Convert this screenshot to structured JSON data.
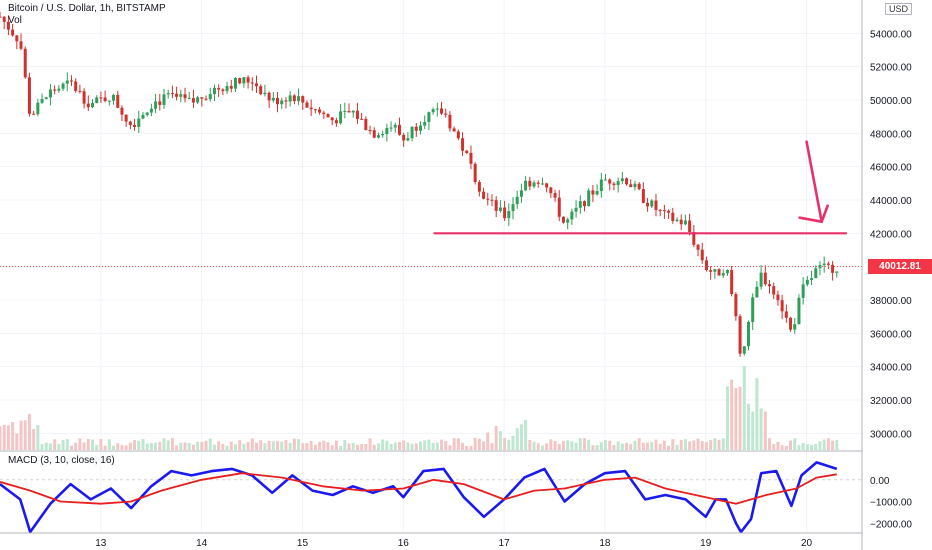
{
  "header": {
    "title": "Bitcoin / U.S. Dollar, 1h, BITSTAMP",
    "vol_label": "Vol",
    "macd_label": "MACD (3, 10, close, 16)",
    "currency": "USD"
  },
  "current_price": "40012.81",
  "colors": {
    "up": "#26a69a",
    "down": "#ef5350",
    "candle_up": "#2e9e58",
    "candle_down": "#d0312d",
    "annotation": "#e8306a",
    "macd_line": "#1a1af0",
    "signal_line": "#e81e1e",
    "grid": "#f0f3fa"
  },
  "chart_data": [
    {
      "type": "candlestick",
      "title": "Bitcoin / U.S. Dollar, 1h, BITSTAMP",
      "y_unit": "USD",
      "y_ticks": [
        "54000.00",
        "52000.00",
        "50000.00",
        "48000.00",
        "46000.00",
        "44000.00",
        "42000.00",
        "40000.00",
        "38000.00",
        "36000.00",
        "34000.00",
        "32000.00",
        "30000.00"
      ],
      "ylim": [
        29000,
        56000
      ],
      "x_ticks": [
        "13",
        "14",
        "15",
        "16",
        "17",
        "18",
        "19",
        "20"
      ],
      "series": [
        {
          "name": "price",
          "points": [
            {
              "x": 12.0,
              "price": 55000
            },
            {
              "x": 12.2,
              "price": 53500
            },
            {
              "x": 12.3,
              "price": 49000
            },
            {
              "x": 12.5,
              "price": 50500
            },
            {
              "x": 12.7,
              "price": 51000
            },
            {
              "x": 12.9,
              "price": 49700
            },
            {
              "x": 13.1,
              "price": 50300
            },
            {
              "x": 13.3,
              "price": 48500
            },
            {
              "x": 13.5,
              "price": 49800
            },
            {
              "x": 13.7,
              "price": 50200
            },
            {
              "x": 13.9,
              "price": 49800
            },
            {
              "x": 14.1,
              "price": 50600
            },
            {
              "x": 14.3,
              "price": 51000
            },
            {
              "x": 14.5,
              "price": 51200
            },
            {
              "x": 14.7,
              "price": 49900
            },
            {
              "x": 14.9,
              "price": 50300
            },
            {
              "x": 15.1,
              "price": 49500
            },
            {
              "x": 15.3,
              "price": 48800
            },
            {
              "x": 15.5,
              "price": 49300
            },
            {
              "x": 15.7,
              "price": 48000
            },
            {
              "x": 15.9,
              "price": 48500
            },
            {
              "x": 16.0,
              "price": 47600
            },
            {
              "x": 16.2,
              "price": 49000
            },
            {
              "x": 16.4,
              "price": 49300
            },
            {
              "x": 16.6,
              "price": 47000
            },
            {
              "x": 16.8,
              "price": 44200
            },
            {
              "x": 17.0,
              "price": 43000
            },
            {
              "x": 17.2,
              "price": 45000
            },
            {
              "x": 17.4,
              "price": 45300
            },
            {
              "x": 17.6,
              "price": 42500
            },
            {
              "x": 17.8,
              "price": 44000
            },
            {
              "x": 18.0,
              "price": 45200
            },
            {
              "x": 18.2,
              "price": 45300
            },
            {
              "x": 18.4,
              "price": 44000
            },
            {
              "x": 18.6,
              "price": 43000
            },
            {
              "x": 18.8,
              "price": 42600
            },
            {
              "x": 19.0,
              "price": 40000
            },
            {
              "x": 19.1,
              "price": 39500
            },
            {
              "x": 19.2,
              "price": 40100
            },
            {
              "x": 19.3,
              "price": 37000
            },
            {
              "x": 19.35,
              "price": 34500
            },
            {
              "x": 19.45,
              "price": 37500
            },
            {
              "x": 19.55,
              "price": 39500
            },
            {
              "x": 19.7,
              "price": 38500
            },
            {
              "x": 19.85,
              "price": 36000
            },
            {
              "x": 19.95,
              "price": 38500
            },
            {
              "x": 20.1,
              "price": 39800
            },
            {
              "x": 20.3,
              "price": 40012.81
            }
          ]
        },
        {
          "name": "Vol",
          "points": [
            {
              "x": 12.3,
              "vol": 5
            },
            {
              "x": 13.0,
              "vol": 1
            },
            {
              "x": 14.0,
              "vol": 0.8
            },
            {
              "x": 15.0,
              "vol": 0.8
            },
            {
              "x": 16.0,
              "vol": 1
            },
            {
              "x": 16.8,
              "vol": 2
            },
            {
              "x": 17.0,
              "vol": 3
            },
            {
              "x": 17.2,
              "vol": 2
            },
            {
              "x": 18.0,
              "vol": 1
            },
            {
              "x": 18.8,
              "vol": 2.5
            },
            {
              "x": 19.0,
              "vol": 3
            },
            {
              "x": 19.3,
              "vol": 5.5
            },
            {
              "x": 19.35,
              "vol": 8
            },
            {
              "x": 19.45,
              "vol": 4
            },
            {
              "x": 19.8,
              "vol": 2
            },
            {
              "x": 20.2,
              "vol": 1
            }
          ]
        }
      ],
      "annotations": [
        {
          "type": "horizontal_line",
          "price": 42000,
          "x_start": 16.3,
          "x_end": 20.4
        },
        {
          "type": "arrow",
          "from": {
            "x": 20.0,
            "price": 47500
          },
          "to": {
            "x": 20.15,
            "price": 42700
          }
        }
      ]
    },
    {
      "type": "line",
      "title": "MACD (3, 10, close, 16)",
      "y_ticks": [
        "0.00",
        "−1000.00",
        "−2000.00"
      ],
      "ylim": [
        -2400,
        1000
      ],
      "series": [
        {
          "name": "MACD",
          "color": "#1a1af0",
          "points": [
            {
              "x": 12.0,
              "y": -200
            },
            {
              "x": 12.2,
              "y": -900
            },
            {
              "x": 12.3,
              "y": -2400
            },
            {
              "x": 12.5,
              "y": -1100
            },
            {
              "x": 12.7,
              "y": -200
            },
            {
              "x": 12.9,
              "y": -900
            },
            {
              "x": 13.1,
              "y": -400
            },
            {
              "x": 13.3,
              "y": -1300
            },
            {
              "x": 13.5,
              "y": -300
            },
            {
              "x": 13.7,
              "y": 400
            },
            {
              "x": 13.9,
              "y": 200
            },
            {
              "x": 14.1,
              "y": 400
            },
            {
              "x": 14.3,
              "y": 500
            },
            {
              "x": 14.5,
              "y": 200
            },
            {
              "x": 14.7,
              "y": -600
            },
            {
              "x": 14.9,
              "y": 200
            },
            {
              "x": 15.1,
              "y": -500
            },
            {
              "x": 15.3,
              "y": -700
            },
            {
              "x": 15.5,
              "y": -300
            },
            {
              "x": 15.7,
              "y": -600
            },
            {
              "x": 15.9,
              "y": -300
            },
            {
              "x": 16.0,
              "y": -800
            },
            {
              "x": 16.2,
              "y": 400
            },
            {
              "x": 16.4,
              "y": 500
            },
            {
              "x": 16.6,
              "y": -800
            },
            {
              "x": 16.8,
              "y": -1700
            },
            {
              "x": 17.0,
              "y": -900
            },
            {
              "x": 17.2,
              "y": 100
            },
            {
              "x": 17.4,
              "y": 500
            },
            {
              "x": 17.6,
              "y": -1000
            },
            {
              "x": 17.8,
              "y": -200
            },
            {
              "x": 18.0,
              "y": 300
            },
            {
              "x": 18.2,
              "y": 400
            },
            {
              "x": 18.4,
              "y": -900
            },
            {
              "x": 18.6,
              "y": -700
            },
            {
              "x": 18.8,
              "y": -900
            },
            {
              "x": 19.0,
              "y": -1700
            },
            {
              "x": 19.1,
              "y": -900
            },
            {
              "x": 19.2,
              "y": -900
            },
            {
              "x": 19.3,
              "y": -2000
            },
            {
              "x": 19.35,
              "y": -2400
            },
            {
              "x": 19.45,
              "y": -1800
            },
            {
              "x": 19.55,
              "y": 300
            },
            {
              "x": 19.7,
              "y": 400
            },
            {
              "x": 19.85,
              "y": -1200
            },
            {
              "x": 19.95,
              "y": 200
            },
            {
              "x": 20.1,
              "y": 800
            },
            {
              "x": 20.3,
              "y": 500
            }
          ]
        },
        {
          "name": "Signal",
          "color": "#e81e1e",
          "points": [
            {
              "x": 12.0,
              "y": -100
            },
            {
              "x": 12.3,
              "y": -500
            },
            {
              "x": 12.6,
              "y": -1000
            },
            {
              "x": 13.0,
              "y": -1100
            },
            {
              "x": 13.3,
              "y": -1000
            },
            {
              "x": 13.6,
              "y": -500
            },
            {
              "x": 14.0,
              "y": 0
            },
            {
              "x": 14.4,
              "y": 300
            },
            {
              "x": 14.8,
              "y": 100
            },
            {
              "x": 15.2,
              "y": -300
            },
            {
              "x": 15.6,
              "y": -500
            },
            {
              "x": 16.0,
              "y": -400
            },
            {
              "x": 16.3,
              "y": 0
            },
            {
              "x": 16.6,
              "y": -200
            },
            {
              "x": 17.0,
              "y": -900
            },
            {
              "x": 17.3,
              "y": -500
            },
            {
              "x": 17.6,
              "y": -400
            },
            {
              "x": 18.0,
              "y": 0
            },
            {
              "x": 18.3,
              "y": 100
            },
            {
              "x": 18.6,
              "y": -400
            },
            {
              "x": 19.0,
              "y": -800
            },
            {
              "x": 19.3,
              "y": -1100
            },
            {
              "x": 19.6,
              "y": -700
            },
            {
              "x": 19.9,
              "y": -400
            },
            {
              "x": 20.1,
              "y": 100
            },
            {
              "x": 20.3,
              "y": 250
            }
          ]
        }
      ]
    }
  ]
}
